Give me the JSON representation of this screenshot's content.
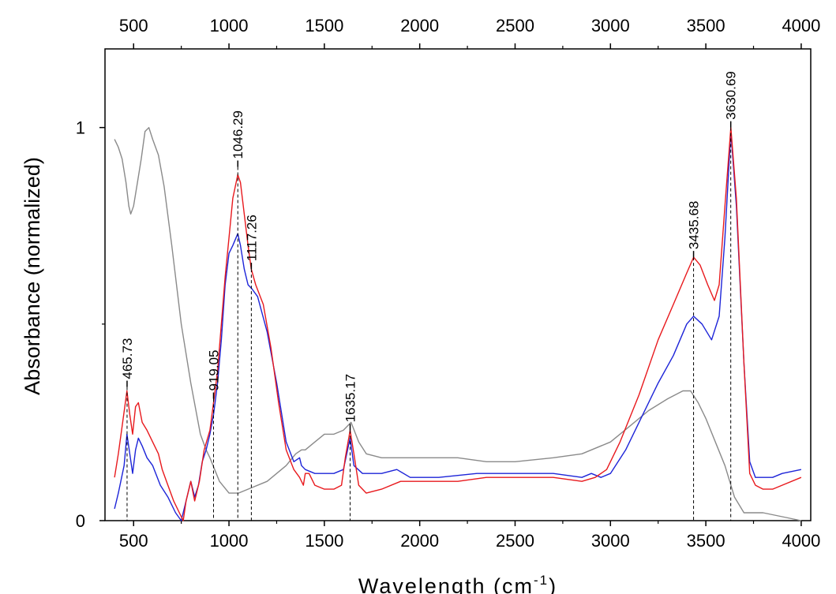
{
  "chart_data": {
    "type": "line",
    "title": "",
    "xlabel": "Wavelength (cm",
    "xlabel_sup": "-1",
    "xlabel_close": ")",
    "ylabel": "Absorbance (normalized)",
    "xlim": [
      350,
      4050
    ],
    "ylim": [
      0,
      1.2
    ],
    "x_ticks": [
      "500",
      "1000",
      "1500",
      "2000",
      "2500",
      "3000",
      "3500",
      "4000"
    ],
    "x_tick_values": [
      500,
      1000,
      1500,
      2000,
      2500,
      3000,
      3500,
      4000
    ],
    "y_ticks": [
      "0",
      "1"
    ],
    "y_tick_values": [
      0,
      1
    ],
    "grid": false,
    "colors": {
      "red": "#e8191d",
      "blue": "#1d24d8",
      "gray": "#8a8a8a"
    },
    "peaks": [
      {
        "label": "465.73",
        "x": 465.73,
        "y": 0.34
      },
      {
        "label": "919.05",
        "x": 919.05,
        "y": 0.31
      },
      {
        "label": "1046.29",
        "x": 1046.29,
        "y": 0.9
      },
      {
        "label": "1117.26",
        "x": 1117.26,
        "y": 0.64
      },
      {
        "label": "1635.17",
        "x": 1635.17,
        "y": 0.23
      },
      {
        "label": "3435.68",
        "x": 3435.68,
        "y": 0.67
      },
      {
        "label": "3630.69",
        "x": 3630.69,
        "y": 1.0
      }
    ],
    "series": [
      {
        "color": "red",
        "points": [
          [
            400,
            0.11
          ],
          [
            420,
            0.17
          ],
          [
            440,
            0.24
          ],
          [
            465,
            0.33
          ],
          [
            480,
            0.27
          ],
          [
            495,
            0.22
          ],
          [
            510,
            0.29
          ],
          [
            525,
            0.3
          ],
          [
            545,
            0.25
          ],
          [
            570,
            0.23
          ],
          [
            600,
            0.2
          ],
          [
            630,
            0.17
          ],
          [
            650,
            0.13
          ],
          [
            680,
            0.09
          ],
          [
            710,
            0.05
          ],
          [
            740,
            0.02
          ],
          [
            760,
            0.0
          ],
          [
            775,
            0.05
          ],
          [
            800,
            0.1
          ],
          [
            820,
            0.05
          ],
          [
            845,
            0.1
          ],
          [
            870,
            0.18
          ],
          [
            900,
            0.23
          ],
          [
            919,
            0.3
          ],
          [
            940,
            0.38
          ],
          [
            960,
            0.5
          ],
          [
            980,
            0.62
          ],
          [
            1000,
            0.72
          ],
          [
            1020,
            0.82
          ],
          [
            1046,
            0.88
          ],
          [
            1060,
            0.86
          ],
          [
            1080,
            0.78
          ],
          [
            1100,
            0.7
          ],
          [
            1117,
            0.64
          ],
          [
            1140,
            0.6
          ],
          [
            1180,
            0.55
          ],
          [
            1220,
            0.44
          ],
          [
            1260,
            0.3
          ],
          [
            1300,
            0.18
          ],
          [
            1340,
            0.13
          ],
          [
            1370,
            0.11
          ],
          [
            1390,
            0.09
          ],
          [
            1400,
            0.12
          ],
          [
            1420,
            0.12
          ],
          [
            1450,
            0.09
          ],
          [
            1500,
            0.08
          ],
          [
            1550,
            0.08
          ],
          [
            1590,
            0.09
          ],
          [
            1610,
            0.16
          ],
          [
            1635,
            0.23
          ],
          [
            1655,
            0.17
          ],
          [
            1680,
            0.09
          ],
          [
            1720,
            0.07
          ],
          [
            1800,
            0.08
          ],
          [
            1900,
            0.1
          ],
          [
            2000,
            0.1
          ],
          [
            2200,
            0.1
          ],
          [
            2350,
            0.11
          ],
          [
            2500,
            0.11
          ],
          [
            2700,
            0.11
          ],
          [
            2850,
            0.1
          ],
          [
            2920,
            0.11
          ],
          [
            2980,
            0.13
          ],
          [
            3050,
            0.2
          ],
          [
            3150,
            0.32
          ],
          [
            3250,
            0.46
          ],
          [
            3330,
            0.55
          ],
          [
            3400,
            0.63
          ],
          [
            3436,
            0.67
          ],
          [
            3470,
            0.65
          ],
          [
            3510,
            0.6
          ],
          [
            3545,
            0.56
          ],
          [
            3570,
            0.6
          ],
          [
            3600,
            0.8
          ],
          [
            3631,
            1.0
          ],
          [
            3660,
            0.82
          ],
          [
            3700,
            0.4
          ],
          [
            3730,
            0.12
          ],
          [
            3760,
            0.09
          ],
          [
            3800,
            0.08
          ],
          [
            3850,
            0.08
          ],
          [
            3900,
            0.09
          ],
          [
            4000,
            0.11
          ]
        ]
      },
      {
        "color": "blue",
        "points": [
          [
            400,
            0.03
          ],
          [
            420,
            0.07
          ],
          [
            450,
            0.14
          ],
          [
            465,
            0.22
          ],
          [
            480,
            0.17
          ],
          [
            495,
            0.12
          ],
          [
            510,
            0.18
          ],
          [
            525,
            0.21
          ],
          [
            545,
            0.19
          ],
          [
            570,
            0.16
          ],
          [
            600,
            0.14
          ],
          [
            640,
            0.09
          ],
          [
            680,
            0.06
          ],
          [
            720,
            0.02
          ],
          [
            750,
            0.0
          ],
          [
            770,
            0.04
          ],
          [
            800,
            0.1
          ],
          [
            820,
            0.06
          ],
          [
            840,
            0.09
          ],
          [
            860,
            0.15
          ],
          [
            880,
            0.18
          ],
          [
            900,
            0.22
          ],
          [
            919,
            0.27
          ],
          [
            940,
            0.35
          ],
          [
            960,
            0.46
          ],
          [
            980,
            0.6
          ],
          [
            1000,
            0.68
          ],
          [
            1020,
            0.7
          ],
          [
            1046,
            0.73
          ],
          [
            1060,
            0.7
          ],
          [
            1080,
            0.64
          ],
          [
            1100,
            0.6
          ],
          [
            1120,
            0.59
          ],
          [
            1150,
            0.57
          ],
          [
            1200,
            0.48
          ],
          [
            1250,
            0.35
          ],
          [
            1300,
            0.2
          ],
          [
            1340,
            0.15
          ],
          [
            1370,
            0.16
          ],
          [
            1380,
            0.14
          ],
          [
            1400,
            0.13
          ],
          [
            1450,
            0.12
          ],
          [
            1500,
            0.12
          ],
          [
            1550,
            0.12
          ],
          [
            1600,
            0.13
          ],
          [
            1635,
            0.21
          ],
          [
            1655,
            0.14
          ],
          [
            1700,
            0.12
          ],
          [
            1800,
            0.12
          ],
          [
            1880,
            0.13
          ],
          [
            1950,
            0.11
          ],
          [
            2100,
            0.11
          ],
          [
            2300,
            0.12
          ],
          [
            2500,
            0.12
          ],
          [
            2700,
            0.12
          ],
          [
            2850,
            0.11
          ],
          [
            2900,
            0.12
          ],
          [
            2950,
            0.11
          ],
          [
            3000,
            0.12
          ],
          [
            3080,
            0.18
          ],
          [
            3150,
            0.25
          ],
          [
            3250,
            0.35
          ],
          [
            3330,
            0.42
          ],
          [
            3400,
            0.5
          ],
          [
            3436,
            0.52
          ],
          [
            3480,
            0.5
          ],
          [
            3530,
            0.46
          ],
          [
            3570,
            0.52
          ],
          [
            3600,
            0.72
          ],
          [
            3631,
            0.99
          ],
          [
            3660,
            0.8
          ],
          [
            3700,
            0.4
          ],
          [
            3730,
            0.15
          ],
          [
            3760,
            0.11
          ],
          [
            3800,
            0.11
          ],
          [
            3850,
            0.11
          ],
          [
            3900,
            0.12
          ],
          [
            4000,
            0.13
          ]
        ]
      },
      {
        "color": "gray",
        "points": [
          [
            400,
            0.97
          ],
          [
            420,
            0.95
          ],
          [
            440,
            0.92
          ],
          [
            460,
            0.86
          ],
          [
            475,
            0.8
          ],
          [
            485,
            0.78
          ],
          [
            500,
            0.8
          ],
          [
            520,
            0.86
          ],
          [
            540,
            0.92
          ],
          [
            560,
            0.99
          ],
          [
            580,
            1.0
          ],
          [
            600,
            0.97
          ],
          [
            630,
            0.93
          ],
          [
            660,
            0.85
          ],
          [
            700,
            0.7
          ],
          [
            750,
            0.5
          ],
          [
            800,
            0.35
          ],
          [
            850,
            0.22
          ],
          [
            880,
            0.18
          ],
          [
            900,
            0.16
          ],
          [
            950,
            0.1
          ],
          [
            1000,
            0.07
          ],
          [
            1050,
            0.07
          ],
          [
            1100,
            0.08
          ],
          [
            1200,
            0.1
          ],
          [
            1300,
            0.14
          ],
          [
            1350,
            0.17
          ],
          [
            1380,
            0.18
          ],
          [
            1400,
            0.18
          ],
          [
            1450,
            0.2
          ],
          [
            1500,
            0.22
          ],
          [
            1550,
            0.22
          ],
          [
            1600,
            0.23
          ],
          [
            1640,
            0.25
          ],
          [
            1680,
            0.2
          ],
          [
            1720,
            0.17
          ],
          [
            1800,
            0.16
          ],
          [
            1900,
            0.16
          ],
          [
            2000,
            0.16
          ],
          [
            2100,
            0.16
          ],
          [
            2200,
            0.16
          ],
          [
            2350,
            0.15
          ],
          [
            2500,
            0.15
          ],
          [
            2700,
            0.16
          ],
          [
            2850,
            0.17
          ],
          [
            3000,
            0.2
          ],
          [
            3100,
            0.24
          ],
          [
            3200,
            0.28
          ],
          [
            3300,
            0.31
          ],
          [
            3380,
            0.33
          ],
          [
            3420,
            0.33
          ],
          [
            3460,
            0.3
          ],
          [
            3500,
            0.26
          ],
          [
            3550,
            0.2
          ],
          [
            3600,
            0.14
          ],
          [
            3650,
            0.06
          ],
          [
            3700,
            0.02
          ],
          [
            3800,
            0.02
          ],
          [
            3900,
            0.01
          ],
          [
            4000,
            0.0
          ]
        ]
      }
    ]
  }
}
